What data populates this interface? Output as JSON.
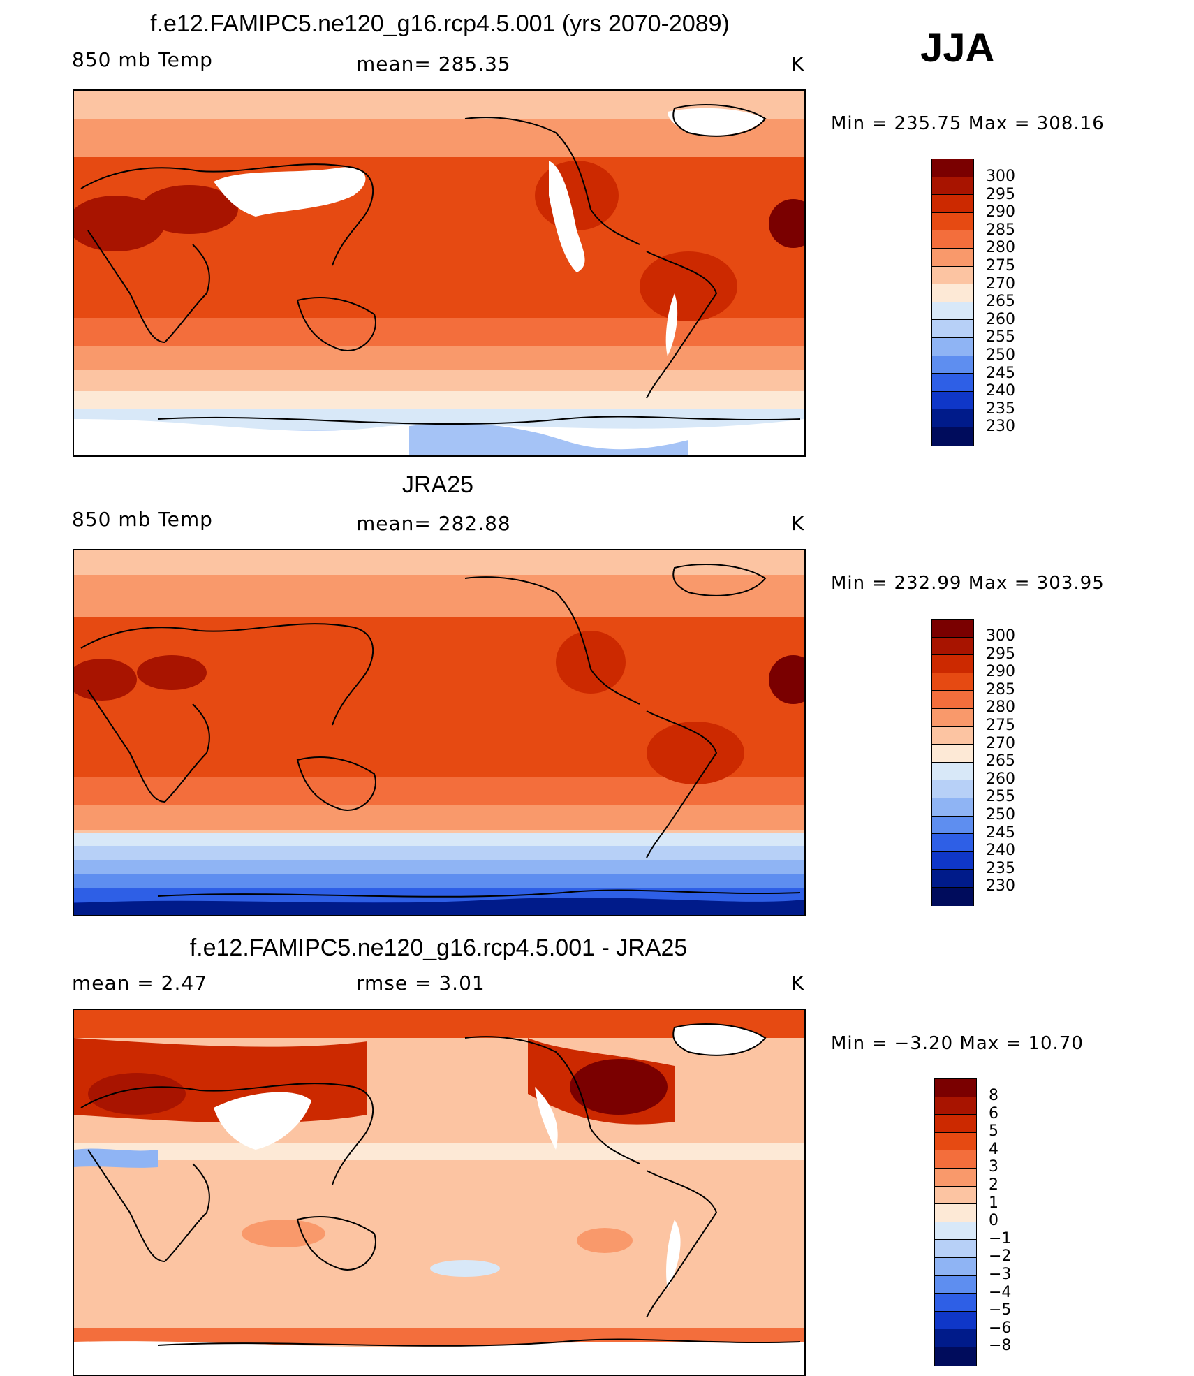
{
  "season": "JJA",
  "panels": [
    {
      "title": "f.e12.FAMIPC5.ne120_g16.rcp4.5.001 (yrs 2070-2089)",
      "left_text": "850 mb Temp",
      "center_text": "mean= 285.35",
      "units": "K",
      "minmax": "Min = 235.75 Max = 308.16",
      "colorbar_labels": [
        "300",
        "295",
        "290",
        "285",
        "280",
        "275",
        "270",
        "265",
        "260",
        "255",
        "250",
        "245",
        "240",
        "235",
        "230"
      ]
    },
    {
      "title": "JRA25",
      "left_text": "850 mb Temp",
      "center_text": "mean= 282.88",
      "units": "K",
      "minmax": "Min = 232.99 Max = 303.95",
      "colorbar_labels": [
        "300",
        "295",
        "290",
        "285",
        "280",
        "275",
        "270",
        "265",
        "260",
        "255",
        "250",
        "245",
        "240",
        "235",
        "230"
      ]
    },
    {
      "title": "f.e12.FAMIPC5.ne120_g16.rcp4.5.001 - JRA25",
      "left_text": "mean =    2.47",
      "center_text": "rmse =    3.01",
      "units": "K",
      "minmax": "Min =  −3.20 Max =   10.70",
      "colorbar_labels": [
        "8",
        "6",
        "5",
        "4",
        "3",
        "2",
        "1",
        "0",
        "−1",
        "−2",
        "−3",
        "−4",
        "−5",
        "−6",
        "−8"
      ]
    }
  ],
  "colors": {
    "warm_scale": [
      "#7a0000",
      "#a81400",
      "#cc2900",
      "#e64a12",
      "#f36e3c",
      "#f9996b",
      "#fcc4a2",
      "#fde9d6",
      "#d8e8f8",
      "#b7d0f7",
      "#8fb4f4",
      "#5e8ef0",
      "#2e5fe6",
      "#0f37c8",
      "#001b8a",
      "#000c5c"
    ],
    "diff_scale": [
      "#7a0000",
      "#a81400",
      "#cc2900",
      "#e64a12",
      "#f36e3c",
      "#f9996b",
      "#fcc4a2",
      "#fde9d6",
      "#d8e8f8",
      "#b7d0f7",
      "#8fb4f4",
      "#5e8ef0",
      "#2e5fe6",
      "#0f37c8",
      "#001b8a",
      "#000c5c"
    ]
  }
}
